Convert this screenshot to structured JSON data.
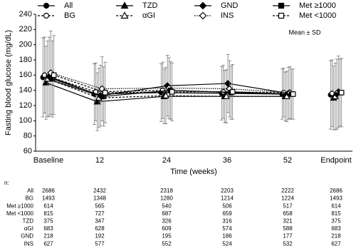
{
  "chart_data": {
    "type": "line",
    "y_label": "Fasting blood glucose (mg/dL)",
    "x_label": "Time (weeks)",
    "annotation": "Mean ± SD",
    "categories": [
      "Baseline",
      "12",
      "24",
      "36",
      "52",
      "Endpoint"
    ],
    "ylim": [
      60,
      240
    ],
    "yticks": [
      60,
      80,
      100,
      120,
      140,
      160,
      180,
      200,
      220,
      240
    ],
    "series": [
      {
        "name": "All",
        "color": "#000000",
        "marker": "circle",
        "filled": true,
        "values": [
          157,
          135,
          137,
          136,
          135,
          134
        ],
        "errors": [
          52,
          40,
          38,
          35,
          33,
          45
        ]
      },
      {
        "name": "BG",
        "color": "#000000",
        "marker": "circle",
        "filled": false,
        "values": [
          160,
          138,
          140,
          138,
          137,
          136
        ],
        "errors": [
          50,
          38,
          37,
          35,
          32,
          44
        ]
      },
      {
        "name": "TZD",
        "color": "#000000",
        "marker": "triangle",
        "filled": true,
        "values": [
          150,
          125,
          132,
          132,
          132,
          130
        ],
        "errors": [
          48,
          38,
          36,
          34,
          32,
          42
        ]
      },
      {
        "name": "αGI",
        "color": "#000000",
        "marker": "triangle",
        "filled": false,
        "values": [
          155,
          130,
          133,
          132,
          132,
          132
        ],
        "errors": [
          50,
          39,
          37,
          35,
          33,
          44
        ]
      },
      {
        "name": "GND",
        "color": "#000000",
        "marker": "diamond",
        "filled": true,
        "values": [
          158,
          133,
          146,
          149,
          136,
          135
        ],
        "errors": [
          52,
          40,
          40,
          38,
          34,
          46
        ]
      },
      {
        "name": "INS",
        "color": "#000000",
        "marker": "diamond",
        "filled": false,
        "values": [
          163,
          142,
          143,
          142,
          137,
          138
        ],
        "errors": [
          55,
          42,
          40,
          37,
          34,
          47
        ]
      },
      {
        "name": "Met ≥1000",
        "color": "#000000",
        "marker": "square",
        "filled": true,
        "values": [
          155,
          132,
          140,
          137,
          135,
          137
        ],
        "errors": [
          50,
          39,
          38,
          35,
          33,
          44
        ]
      },
      {
        "name": "Met <1000",
        "color": "#000000",
        "marker": "square",
        "filled": false,
        "values": [
          160,
          137,
          138,
          138,
          135,
          137
        ],
        "errors": [
          52,
          40,
          38,
          36,
          33,
          45
        ]
      }
    ],
    "n_table": {
      "header": "n:",
      "rows": [
        {
          "label": "All",
          "values": [
            2686,
            2432,
            2318,
            2203,
            2222,
            2686
          ]
        },
        {
          "label": "BG",
          "values": [
            1493,
            1348,
            1280,
            1214,
            1224,
            1493
          ]
        },
        {
          "label": "Met ≥1000",
          "values": [
            614,
            565,
            540,
            506,
            517,
            614
          ]
        },
        {
          "label": "Met <1000",
          "values": [
            815,
            727,
            687,
            659,
            658,
            815
          ]
        },
        {
          "label": "TZD",
          "values": [
            375,
            347,
            326,
            316,
            321,
            375
          ]
        },
        {
          "label": "αGI",
          "values": [
            683,
            628,
            609,
            574,
            588,
            683
          ]
        },
        {
          "label": "GND",
          "values": [
            218,
            192,
            195,
            186,
            177,
            218
          ]
        },
        {
          "label": "INS",
          "values": [
            627,
            577,
            552,
            524,
            532,
            627
          ]
        }
      ]
    }
  }
}
